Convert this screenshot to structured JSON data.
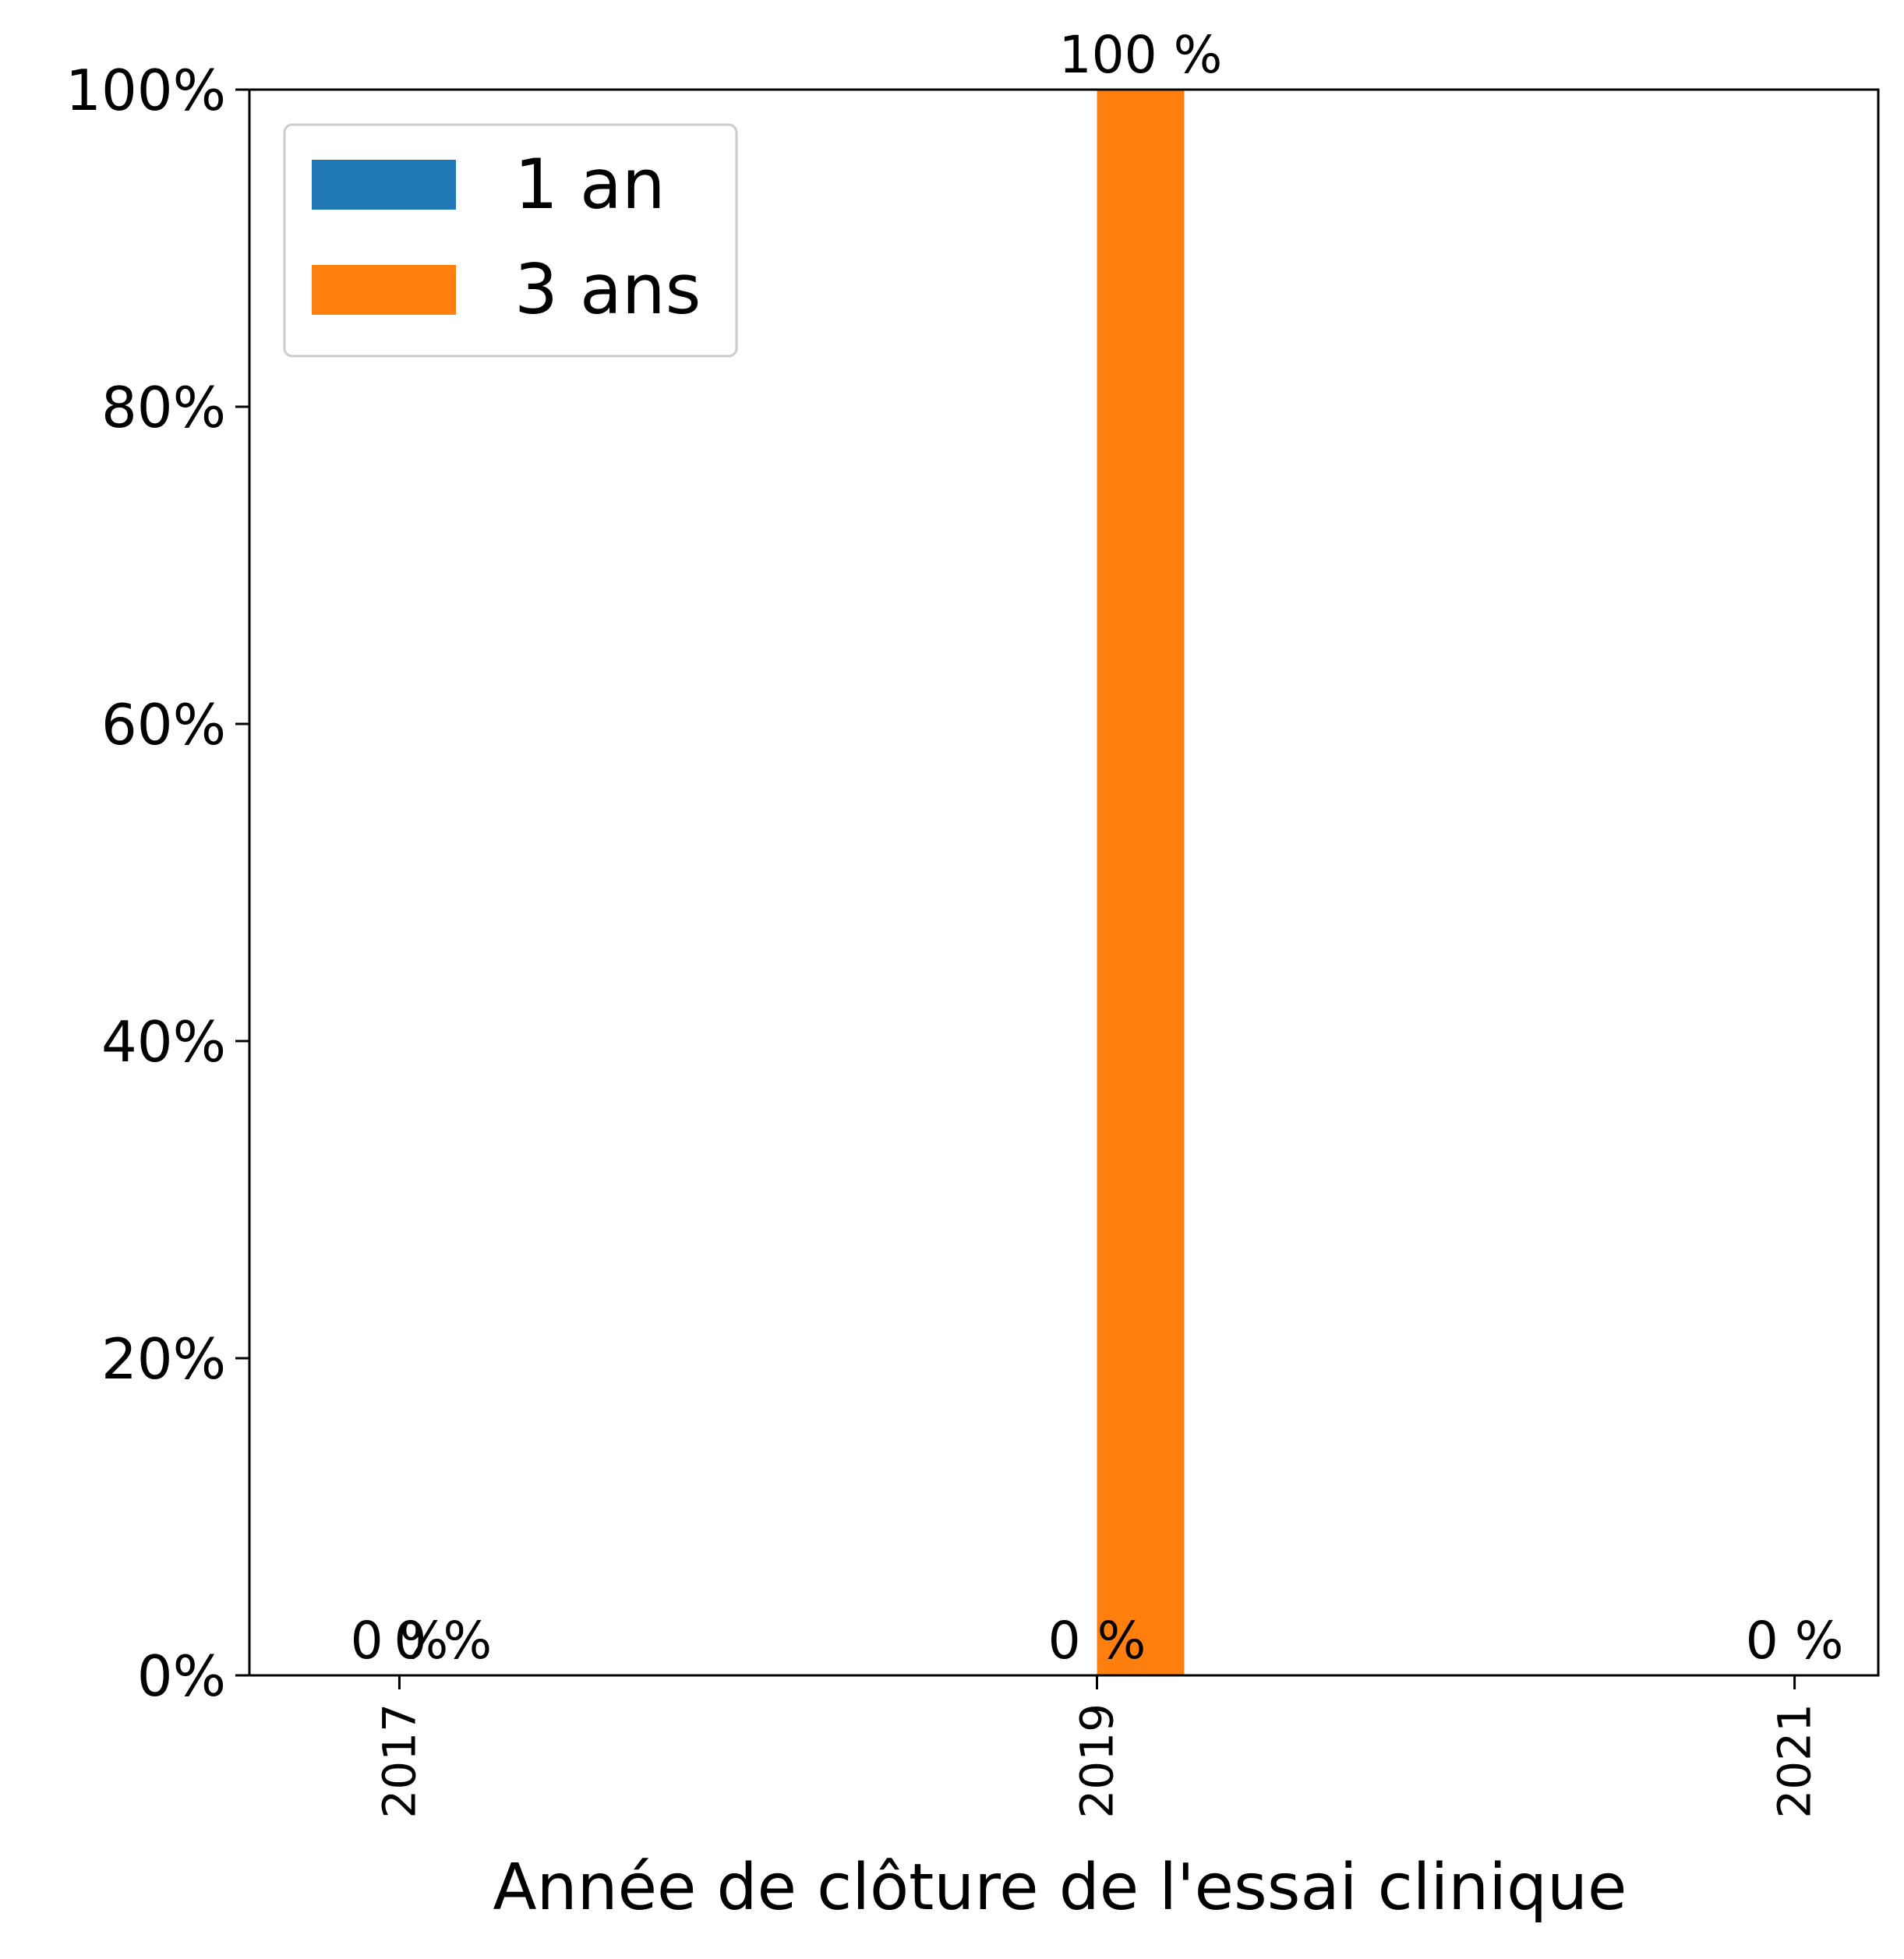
{
  "chart_data": {
    "type": "bar",
    "xlabel": "Année de clôture de l'essai clinique",
    "ylabel": "",
    "ylim": [
      0,
      100
    ],
    "yticks": [
      0,
      20,
      40,
      60,
      80,
      100
    ],
    "ytick_labels": [
      "0%",
      "20%",
      "40%",
      "60%",
      "80%",
      "100%"
    ],
    "xlim": [
      2016.57,
      2021.24
    ],
    "xticks": [
      2017,
      2019,
      2021
    ],
    "xtick_labels": [
      "2017",
      "2019",
      "2021"
    ],
    "bar_width": 0.25,
    "series": [
      {
        "name": "1 an",
        "color": "#1f77b4",
        "x": [
          2017,
          2019,
          2021
        ],
        "values": [
          0,
          0,
          0
        ],
        "labels": [
          "0 %",
          "0 %",
          "0 %"
        ]
      },
      {
        "name": "3 ans",
        "color": "#ff7f0e",
        "x": [
          2017.125,
          2019.125
        ],
        "values": [
          0,
          100
        ],
        "labels": [
          "0 %",
          "100 %"
        ]
      }
    ],
    "legend": {
      "placement": "top-left"
    },
    "grid": false
  }
}
